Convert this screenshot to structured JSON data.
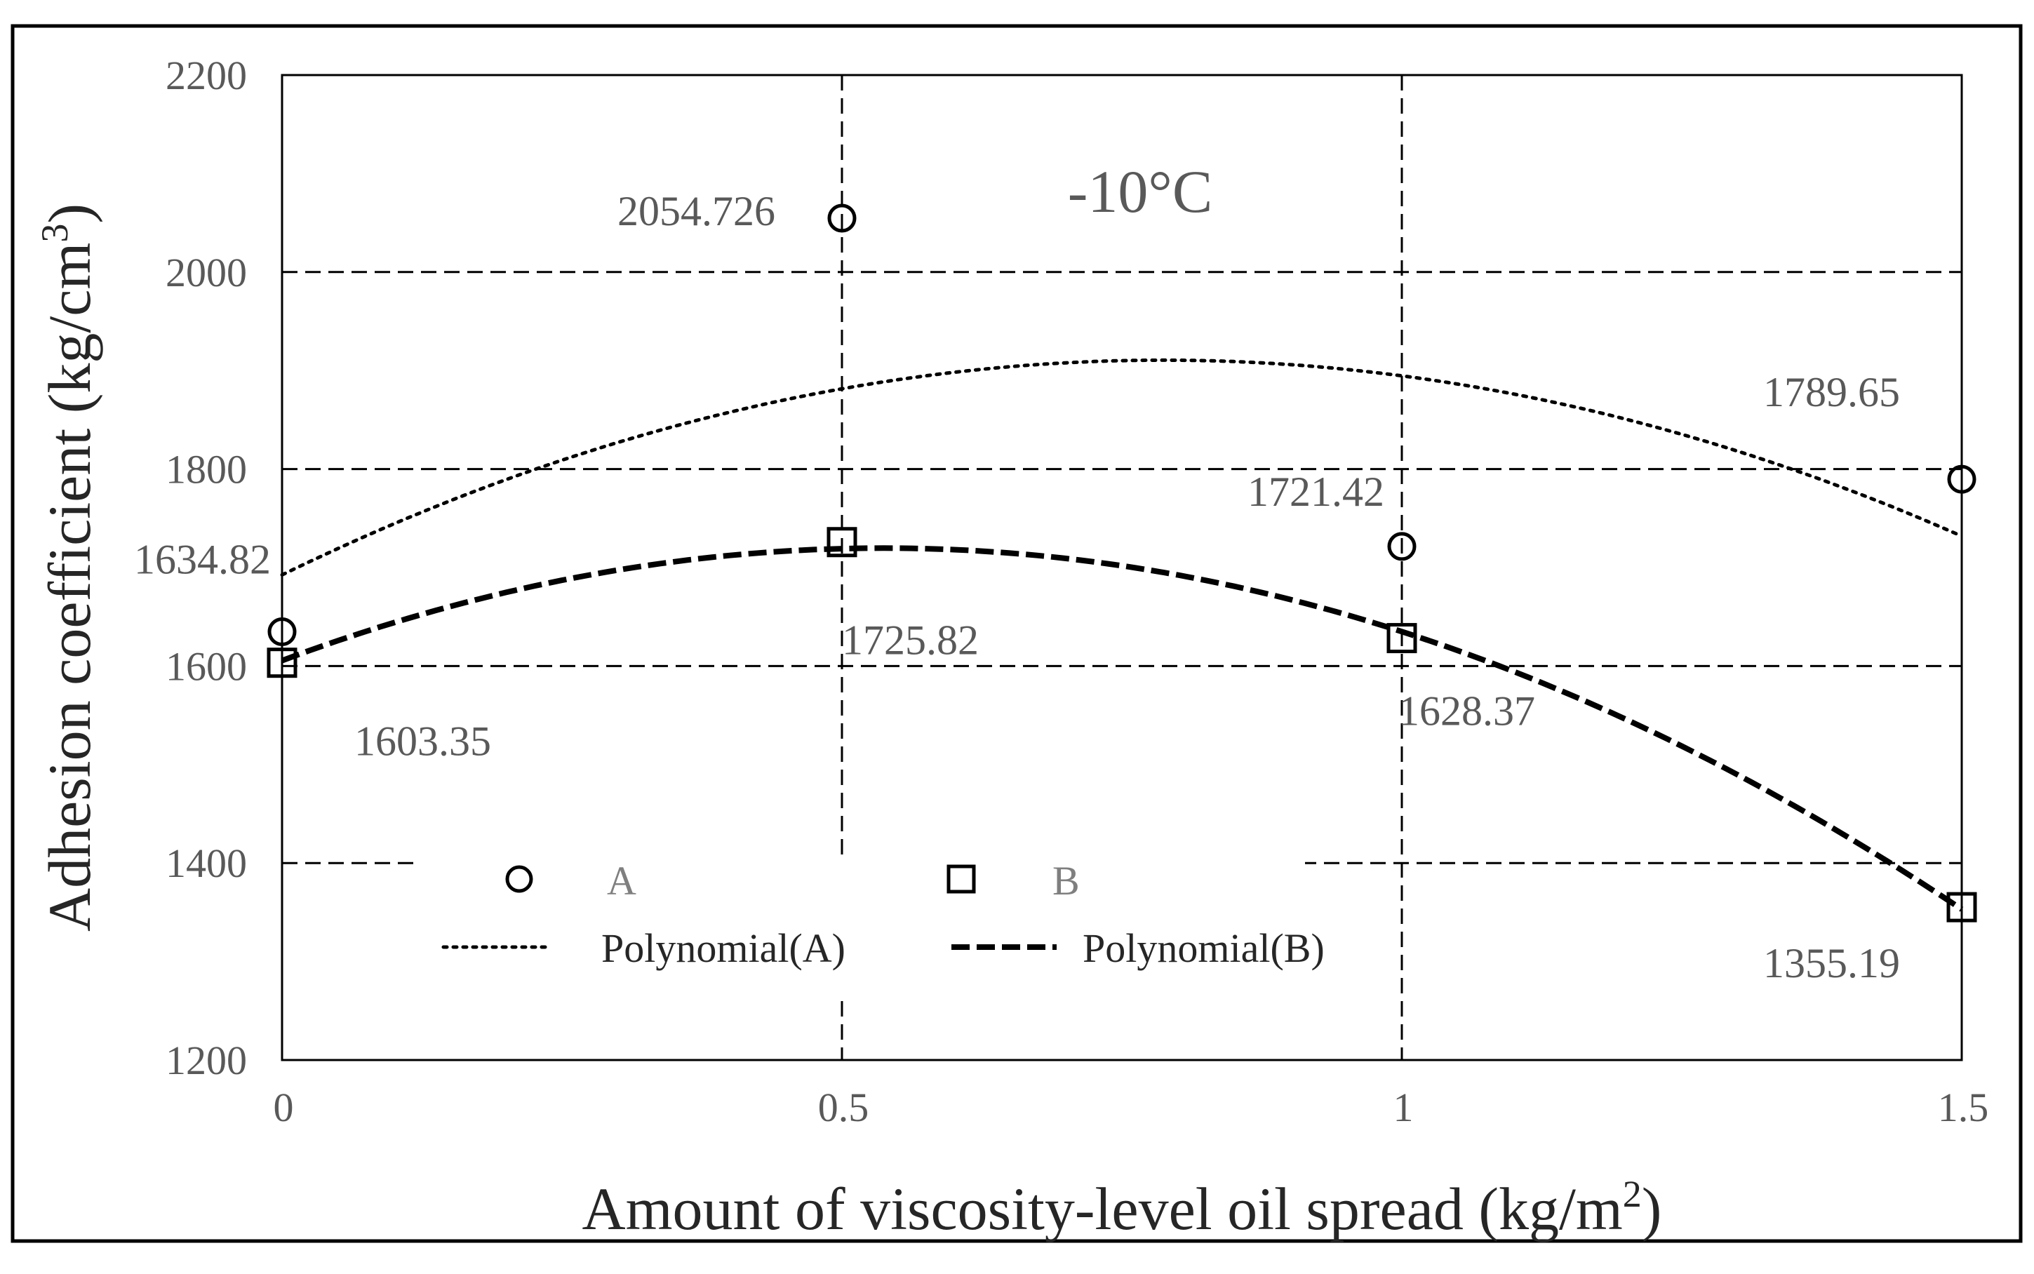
{
  "chart_data": {
    "type": "scatter",
    "title": "",
    "annotation": "-10°C",
    "xlabel": "Amount of viscosity-level  oil spread (kg/m",
    "xlabel_sup": "2",
    "xlabel_end": ")",
    "ylabel": "Adhesion coefficient  (kg/cm",
    "ylabel_sup": "3",
    "ylabel_end": ")",
    "xlim": [
      0,
      1.5
    ],
    "ylim": [
      1200,
      2200
    ],
    "x_ticks": [
      0,
      0.5,
      1,
      1.5
    ],
    "x_tick_labels": [
      "0",
      "0.5",
      "1",
      "1.5"
    ],
    "y_ticks": [
      1200,
      1400,
      1600,
      1800,
      2000,
      2200
    ],
    "y_tick_labels": [
      "1200",
      "1400",
      "1600",
      "1800",
      "2000",
      "2200"
    ],
    "grid": true,
    "series": [
      {
        "name": "A",
        "marker": "circle",
        "x": [
          0,
          0.5,
          1,
          1.5
        ],
        "values": [
          1634.82,
          2054.726,
          1721.42,
          1789.65
        ],
        "labels": [
          "1634.82",
          "2054.726",
          "1721.42",
          "1789.65"
        ]
      },
      {
        "name": "B",
        "marker": "square",
        "x": [
          0,
          0.5,
          1,
          1.5
        ],
        "values": [
          1603.35,
          1725.82,
          1628.37,
          1355.19
        ],
        "labels": [
          "1603.35",
          "1725.82",
          "1628.37",
          "1355.19"
        ]
      }
    ],
    "trendlines": [
      {
        "name": "Polynomial(A)",
        "of": "A",
        "style": "dotted"
      },
      {
        "name": "Polynomial(B)",
        "of": "B",
        "style": "dashed"
      }
    ],
    "legend": {
      "position": "bottom-center",
      "entries": [
        "A",
        "B",
        "Polynomial(A)",
        "Polynomial(B)"
      ]
    }
  }
}
